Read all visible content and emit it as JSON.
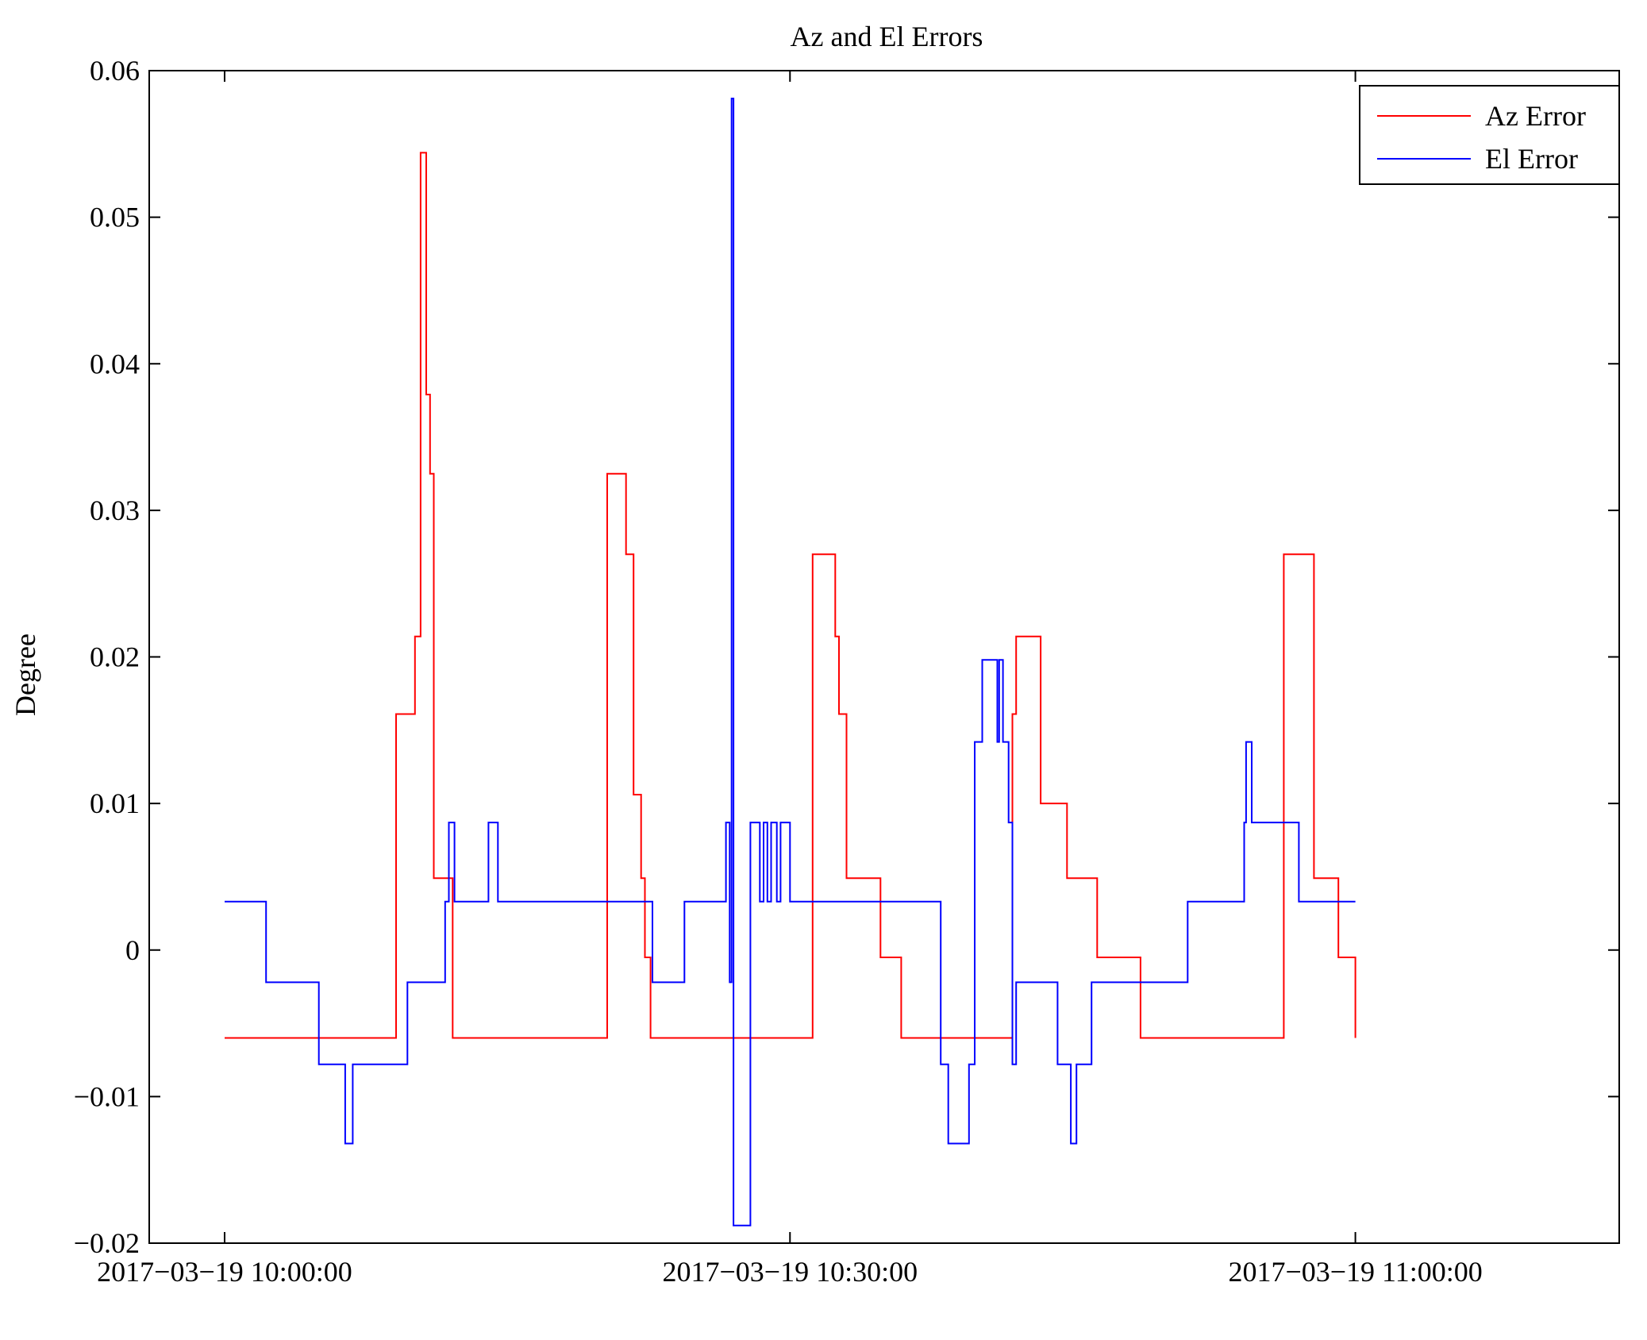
{
  "chart_data": {
    "type": "line",
    "title": "Az and El Errors",
    "xlabel": "",
    "ylabel": "Degree",
    "x_unit": "minutes after 2017-03-19 10:00:00",
    "xlim": [
      -4,
      74
    ],
    "ylim": [
      -0.02,
      0.06
    ],
    "yticks": [
      -0.02,
      -0.01,
      0,
      0.01,
      0.02,
      0.03,
      0.04,
      0.05,
      0.06
    ],
    "ytick_labels": [
      "−0.02",
      "−0.01",
      "0",
      "0.01",
      "0.02",
      "0.03",
      "0.04",
      "0.05",
      "0.06"
    ],
    "xticks": [
      0,
      30,
      60
    ],
    "xtick_labels": [
      "2017−03−19 10:00:00",
      "2017−03−19 10:30:00",
      "2017−03−19 11:00:00"
    ],
    "grid": false,
    "legend_position": "top-right",
    "series": [
      {
        "name": "Az Error",
        "color": "#ff0000",
        "step": true,
        "x": [
          0,
          9.1,
          10.1,
          10.4,
          10.7,
          10.9,
          11.1,
          12.1,
          20.3,
          21.3,
          21.7,
          22.1,
          22.3,
          22.6,
          22.9,
          31.2,
          32.4,
          32.6,
          33.0,
          34.8,
          35.9,
          39.7,
          41.8,
          42.0,
          43.3,
          44.7,
          46.3,
          48.6,
          56.2,
          57.8,
          59.1,
          60.0
        ],
        "values": [
          -0.006,
          0.0161,
          0.0214,
          0.0544,
          0.0379,
          0.0325,
          0.0049,
          -0.006,
          0.0325,
          0.027,
          0.0106,
          0.0049,
          -0.0005,
          -0.006,
          -0.006,
          0.027,
          0.0214,
          0.0161,
          0.0049,
          -0.0005,
          -0.006,
          -0.006,
          0.0161,
          0.0214,
          0.01,
          0.0049,
          -0.0005,
          -0.006,
          0.027,
          0.0049,
          -0.0005,
          -0.006
        ]
      },
      {
        "name": "El Error",
        "color": "#0000ff",
        "step": true,
        "x": [
          0,
          2.2,
          5.0,
          6.4,
          6.8,
          9.7,
          11.7,
          11.9,
          12.2,
          14.0,
          14.5,
          22.7,
          24.4,
          26.6,
          26.8,
          26.9,
          27.0,
          27.9,
          28.4,
          28.6,
          28.8,
          29.0,
          29.3,
          29.5,
          30.0,
          38.0,
          38.4,
          39.5,
          39.8,
          40.2,
          41.0,
          41.1,
          41.3,
          41.6,
          41.8,
          42.0,
          42.1,
          44.2,
          44.9,
          45.2,
          46.0,
          51.1,
          54.1,
          54.2,
          54.5,
          55.0,
          57.0,
          60.0
        ],
        "values": [
          0.0033,
          -0.0022,
          -0.0078,
          -0.0132,
          -0.0078,
          -0.0022,
          0.0033,
          0.0087,
          0.0033,
          0.0087,
          0.0033,
          -0.0022,
          0.0033,
          0.0087,
          -0.0022,
          0.0581,
          -0.0188,
          0.0087,
          0.0033,
          0.0087,
          0.0033,
          0.0087,
          0.0033,
          0.0087,
          0.0033,
          -0.0078,
          -0.0132,
          -0.0078,
          0.0142,
          0.0198,
          0.0142,
          0.0198,
          0.0142,
          0.0087,
          -0.0078,
          -0.0022,
          -0.0022,
          -0.0078,
          -0.0132,
          -0.0078,
          -0.0022,
          0.0033,
          0.0087,
          0.0142,
          0.0087,
          0.0087,
          0.0033,
          0.0033
        ]
      }
    ]
  }
}
